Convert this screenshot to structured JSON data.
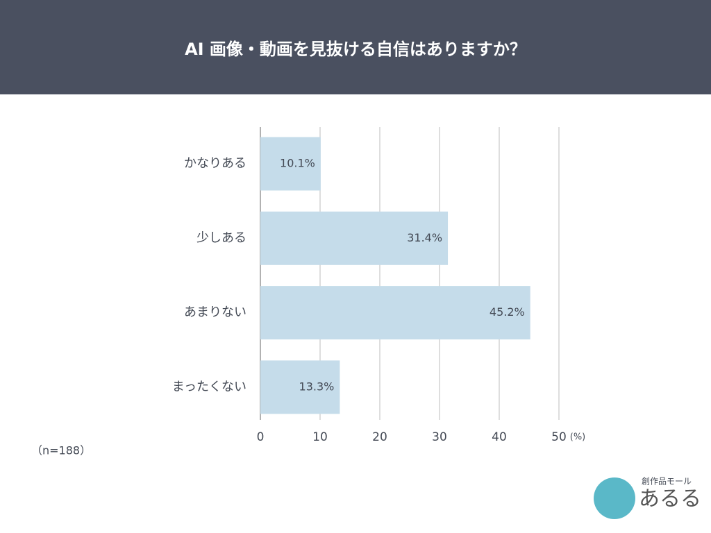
{
  "chart_data": {
    "type": "barh",
    "title": "AI 画像・動画を見抜ける自信はありますか？",
    "categories": [
      "かなりある",
      "少しある",
      "あまりない",
      "まったくない"
    ],
    "values": [
      10.1,
      31.4,
      45.2,
      13.3
    ],
    "value_labels": [
      "10.1%",
      "31.4%",
      "45.2%",
      "13.3%"
    ],
    "color": "#c5dcea",
    "xlim": [
      0,
      50
    ],
    "xticks": [
      0,
      10,
      20,
      30,
      40,
      50
    ],
    "x_unit": "(%)",
    "note": "（n=188）",
    "grid": true
  },
  "logo": {
    "tagline": "創作品モール",
    "name": "あるる"
  }
}
